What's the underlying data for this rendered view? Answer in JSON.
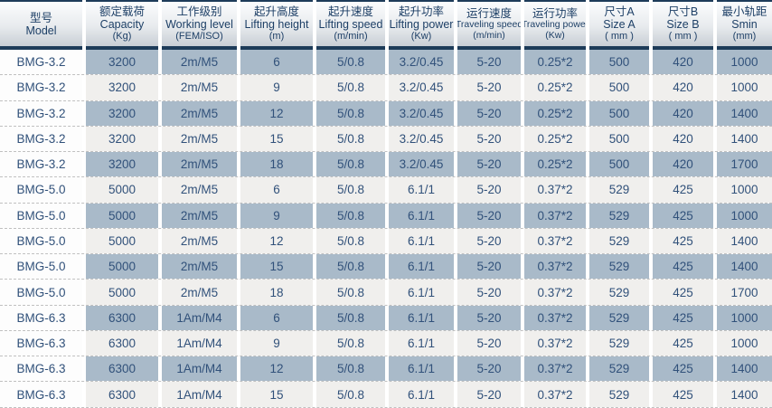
{
  "colors": {
    "header_line": "#1d3b59",
    "header_text": "#1d3f66",
    "header_grad_top": "#fbfcfd",
    "header_grad_bottom": "#c8ced5",
    "cell_text": "#31517a",
    "row_blue": "#a9bac9",
    "row_light": "#f0efed",
    "model_col_bg": "#fdfdfd",
    "dash": "#c0c0c0"
  },
  "table": {
    "columns": [
      {
        "zh": "型号",
        "en": "Model",
        "unit": ""
      },
      {
        "zh": "额定载荷",
        "en": "Capacity",
        "unit": "(Kg)"
      },
      {
        "zh": "工作级别",
        "en": "Working level",
        "unit": "(FEM/ISO)"
      },
      {
        "zh": "起升高度",
        "en": "Lifting height",
        "unit": "(m)"
      },
      {
        "zh": "起升速度",
        "en": "Lifting speed",
        "unit": "(m/min)"
      },
      {
        "zh": "起升功率",
        "en": "Lifting power",
        "unit": "(Kw)"
      },
      {
        "zh": "运行速度",
        "en": "Traveling speed",
        "unit": "(m/min)"
      },
      {
        "zh": "运行功率",
        "en": "Traveling power",
        "unit": "(Kw)"
      },
      {
        "zh": "尺寸A",
        "en": "Size A",
        "unit": "( mm )"
      },
      {
        "zh": "尺寸B",
        "en": "Size B",
        "unit": "( mm )"
      },
      {
        "zh": "最小轨距",
        "en": "Smin",
        "unit": "(mm)"
      }
    ],
    "rows": [
      [
        "BMG-3.2",
        "3200",
        "2m/M5",
        "6",
        "5/0.8",
        "3.2/0.45",
        "5-20",
        "0.25*2",
        "500",
        "420",
        "1000"
      ],
      [
        "BMG-3.2",
        "3200",
        "2m/M5",
        "9",
        "5/0.8",
        "3.2/0.45",
        "5-20",
        "0.25*2",
        "500",
        "420",
        "1000"
      ],
      [
        "BMG-3.2",
        "3200",
        "2m/M5",
        "12",
        "5/0.8",
        "3.2/0.45",
        "5-20",
        "0.25*2",
        "500",
        "420",
        "1400"
      ],
      [
        "BMG-3.2",
        "3200",
        "2m/M5",
        "15",
        "5/0.8",
        "3.2/0.45",
        "5-20",
        "0.25*2",
        "500",
        "420",
        "1400"
      ],
      [
        "BMG-3.2",
        "3200",
        "2m/M5",
        "18",
        "5/0.8",
        "3.2/0.45",
        "5-20",
        "0.25*2",
        "500",
        "420",
        "1700"
      ],
      [
        "BMG-5.0",
        "5000",
        "2m/M5",
        "6",
        "5/0.8",
        "6.1/1",
        "5-20",
        "0.37*2",
        "529",
        "425",
        "1000"
      ],
      [
        "BMG-5.0",
        "5000",
        "2m/M5",
        "9",
        "5/0.8",
        "6.1/1",
        "5-20",
        "0.37*2",
        "529",
        "425",
        "1000"
      ],
      [
        "BMG-5.0",
        "5000",
        "2m/M5",
        "12",
        "5/0.8",
        "6.1/1",
        "5-20",
        "0.37*2",
        "529",
        "425",
        "1400"
      ],
      [
        "BMG-5.0",
        "5000",
        "2m/M5",
        "15",
        "5/0.8",
        "6.1/1",
        "5-20",
        "0.37*2",
        "529",
        "425",
        "1400"
      ],
      [
        "BMG-5.0",
        "5000",
        "2m/M5",
        "18",
        "5/0.8",
        "6.1/1",
        "5-20",
        "0.37*2",
        "529",
        "425",
        "1700"
      ],
      [
        "BMG-6.3",
        "6300",
        "1Am/M4",
        "6",
        "5/0.8",
        "6.1/1",
        "5-20",
        "0.37*2",
        "529",
        "425",
        "1000"
      ],
      [
        "BMG-6.3",
        "6300",
        "1Am/M4",
        "9",
        "5/0.8",
        "6.1/1",
        "5-20",
        "0.37*2",
        "529",
        "425",
        "1000"
      ],
      [
        "BMG-6.3",
        "6300",
        "1Am/M4",
        "12",
        "5/0.8",
        "6.1/1",
        "5-20",
        "0.37*2",
        "529",
        "425",
        "1400"
      ],
      [
        "BMG-6.3",
        "6300",
        "1Am/M4",
        "15",
        "5/0.8",
        "6.1/1",
        "5-20",
        "0.37*2",
        "529",
        "425",
        "1400"
      ]
    ]
  }
}
